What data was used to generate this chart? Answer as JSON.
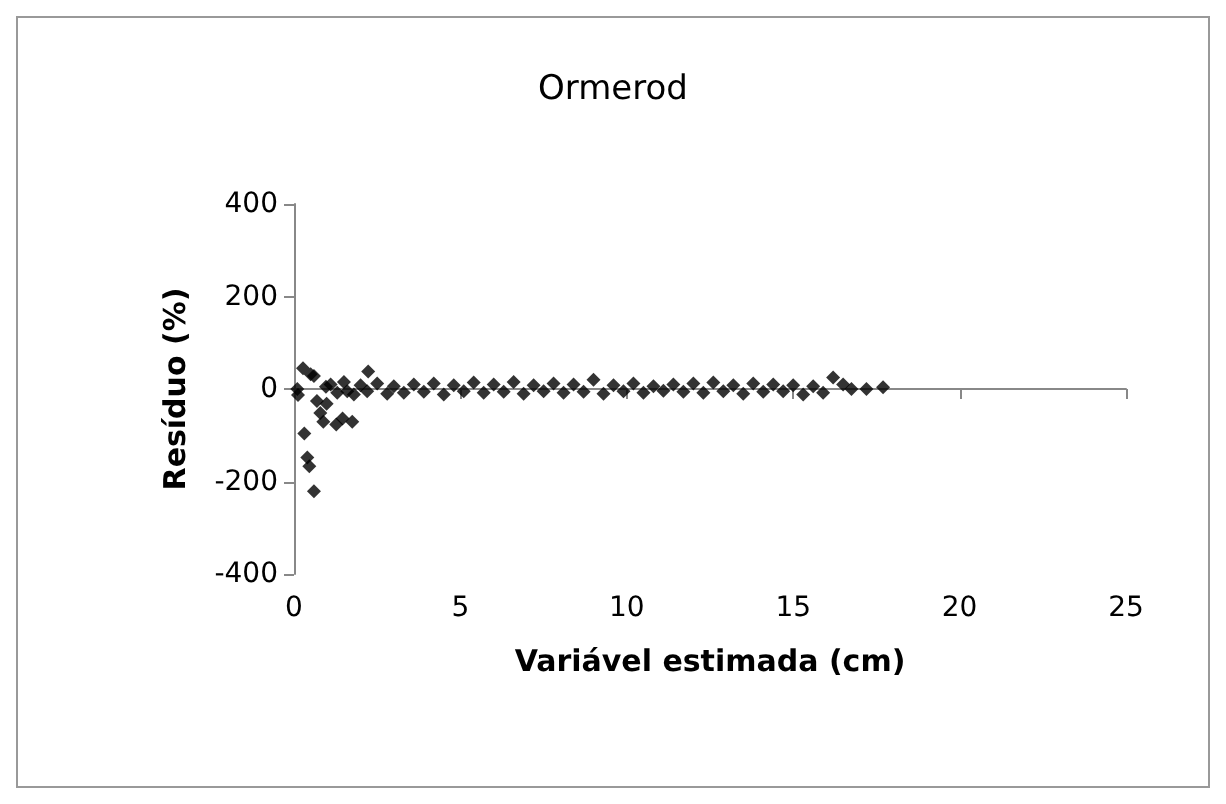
{
  "chart_data": {
    "type": "scatter",
    "title": "Ormerod",
    "xlabel": "Variável estimada (cm)",
    "ylabel": "Resíduo (%)",
    "marker": "diamond",
    "xlim": [
      0,
      25
    ],
    "xticks": [
      0,
      5,
      10,
      15,
      20,
      25
    ],
    "ylim": [
      -400,
      400
    ],
    "yticks": [
      -400,
      -200,
      0,
      200,
      400
    ],
    "series": [
      {
        "color": "#000000",
        "x": [
          0.1,
          0.12,
          0.27,
          0.31,
          0.4,
          0.46,
          0.5,
          0.6,
          0.6,
          0.69,
          0.79,
          0.88,
          0.96,
          0.98,
          1.27,
          1.46,
          1.6,
          1.75,
          2.23,
          1.1,
          1.3,
          1.5,
          1.8,
          2.0,
          2.2,
          2.5,
          2.8,
          3.0,
          3.3,
          3.6,
          3.9,
          4.2,
          4.5,
          4.8,
          5.1,
          5.4,
          5.7,
          6.0,
          6.3,
          6.6,
          6.9,
          7.2,
          7.5,
          7.8,
          8.1,
          8.4,
          8.7,
          9.0,
          9.3,
          9.6,
          9.9,
          10.2,
          10.5,
          10.8,
          11.1,
          11.4,
          11.7,
          12.0,
          12.3,
          12.6,
          12.9,
          13.2,
          13.5,
          13.8,
          14.1,
          14.4,
          14.7,
          15.0,
          15.3,
          15.6,
          15.9,
          16.2,
          16.5,
          16.75,
          17.2,
          17.7
        ],
        "values": [
          0,
          -13,
          45,
          -96,
          -148,
          -167,
          32,
          28,
          -221,
          -26,
          -52,
          -71,
          5,
          -32,
          -77,
          -64,
          -5,
          -71,
          38,
          10,
          -8,
          15,
          -12,
          8,
          -5,
          12,
          -10,
          6,
          -8,
          10,
          -6,
          12,
          -12,
          8,
          -5,
          14,
          -8,
          10,
          -6,
          15,
          -10,
          8,
          -5,
          12,
          -8,
          10,
          -6,
          20,
          -10,
          8,
          -5,
          12,
          -8,
          6,
          -4,
          10,
          -6,
          12,
          -8,
          14,
          -5,
          8,
          -10,
          12,
          -6,
          10,
          -5,
          8,
          -12,
          6,
          -8,
          25,
          10,
          0,
          0,
          4
        ]
      }
    ]
  }
}
